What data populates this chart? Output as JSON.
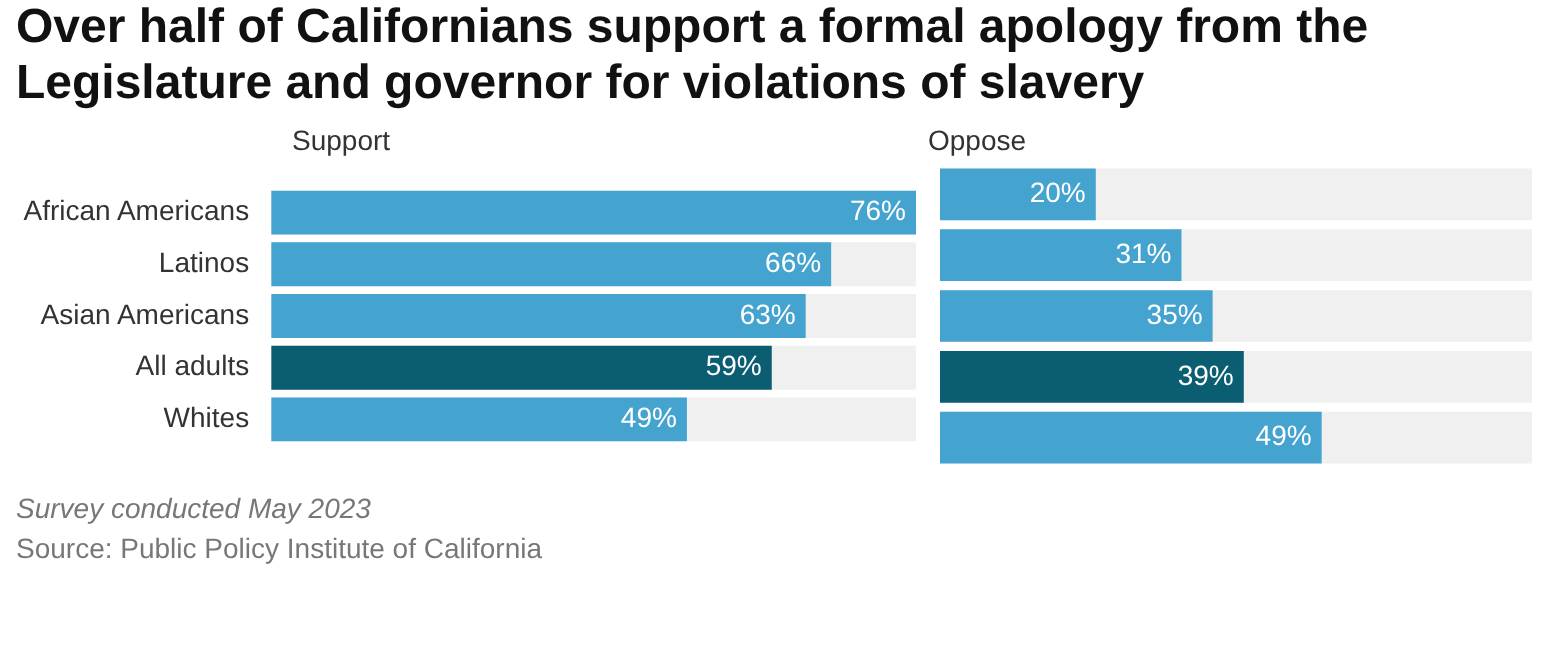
{
  "chart_data": [
    {
      "type": "bar",
      "orientation": "horizontal",
      "title": "Over half of Californians support a formal apology from the Legislature and governor for violations of slavery",
      "subtitle": "Support",
      "categories": [
        "African Americans",
        "Latinos",
        "Asian Americans",
        "All adults",
        "Whites"
      ],
      "values": [
        76,
        66,
        63,
        59,
        49
      ],
      "colors": [
        "#45a4cf",
        "#45a4cf",
        "#45a4cf",
        "#0b5e72",
        "#45a4cf"
      ],
      "value_labels": [
        "76%",
        "66%",
        "63%",
        "59%",
        "49%"
      ],
      "xlim": [
        0,
        76
      ],
      "tick_labels": "y",
      "annotations": [
        "Survey conducted May 2023",
        "Source: Public Policy Institute of California"
      ]
    },
    {
      "type": "bar",
      "orientation": "horizontal",
      "subtitle": "Oppose",
      "categories": [
        null,
        null,
        null,
        null,
        null
      ],
      "values": [
        20,
        31,
        35,
        39,
        49
      ],
      "colors": [
        "#45a4cf",
        "#45a4cf",
        "#45a4cf",
        "#0b5e72",
        "#45a4cf"
      ],
      "value_labels": [
        "20%",
        "31%",
        "35%",
        "39%",
        "49%"
      ],
      "xlim": [
        0,
        76
      ],
      "tick_labels": false
    }
  ]
}
